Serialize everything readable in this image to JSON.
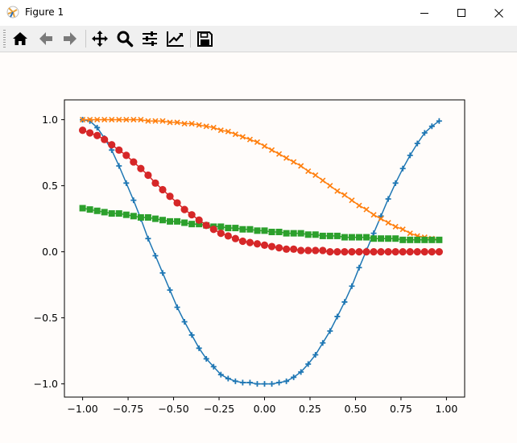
{
  "window": {
    "title": "Figure 1",
    "controls": [
      "minimize",
      "maximize",
      "close"
    ]
  },
  "toolbar": {
    "buttons": [
      {
        "name": "home-icon",
        "tooltip": "Reset original view"
      },
      {
        "name": "back-arrow-icon",
        "tooltip": "Back to previous view"
      },
      {
        "name": "forward-arrow-icon",
        "tooltip": "Forward to next view"
      },
      {
        "name": "pan-move-icon",
        "tooltip": "Pan axes"
      },
      {
        "name": "zoom-magnifier-icon",
        "tooltip": "Zoom to rectangle"
      },
      {
        "name": "configure-subplots-icon",
        "tooltip": "Configure subplots"
      },
      {
        "name": "edit-axis-icon",
        "tooltip": "Edit axis, curve and image parameters"
      },
      {
        "name": "save-floppy-icon",
        "tooltip": "Save the figure"
      }
    ]
  },
  "chart_data": {
    "type": "line",
    "title": "",
    "xlabel": "",
    "ylabel": "",
    "xlim": [
      -1.1,
      1.1
    ],
    "ylim": [
      -1.1,
      1.15
    ],
    "xticks": [
      -1.0,
      -0.75,
      -0.5,
      -0.25,
      0.0,
      0.25,
      0.5,
      0.75,
      1.0
    ],
    "xtick_labels": [
      "−1.00",
      "−0.75",
      "−0.50",
      "−0.25",
      "0.00",
      "0.25",
      "0.50",
      "0.75",
      "1.00"
    ],
    "yticks": [
      -1.0,
      -0.5,
      0.0,
      0.5,
      1.0
    ],
    "ytick_labels": [
      "−1.0",
      "−0.5",
      "0.0",
      "0.5",
      "1.0"
    ],
    "grid": false,
    "x": [
      -1.0,
      -0.96,
      -0.92,
      -0.88,
      -0.84,
      -0.8,
      -0.76,
      -0.72,
      -0.68,
      -0.64,
      -0.6,
      -0.56,
      -0.52,
      -0.48,
      -0.44,
      -0.4,
      -0.36,
      -0.32,
      -0.28,
      -0.24,
      -0.2,
      -0.16,
      -0.12,
      -0.08,
      -0.04,
      0.0,
      0.04,
      0.08,
      0.12,
      0.16,
      0.2,
      0.24,
      0.28,
      0.32,
      0.36,
      0.4,
      0.44,
      0.48,
      0.52,
      0.56,
      0.6,
      0.64,
      0.68,
      0.72,
      0.76,
      0.8,
      0.84,
      0.88,
      0.92,
      0.96
    ],
    "series": [
      {
        "color": "#1f77b4",
        "marker": "plus",
        "line": "solid",
        "values": [
          1.0,
          0.99,
          0.94,
          0.86,
          0.77,
          0.65,
          0.52,
          0.39,
          0.25,
          0.1,
          -0.03,
          -0.16,
          -0.29,
          -0.42,
          -0.53,
          -0.63,
          -0.73,
          -0.81,
          -0.87,
          -0.93,
          -0.96,
          -0.98,
          -0.99,
          -0.99,
          -1.0,
          -1.0,
          -1.0,
          -0.99,
          -0.98,
          -0.95,
          -0.91,
          -0.85,
          -0.78,
          -0.69,
          -0.6,
          -0.49,
          -0.38,
          -0.26,
          -0.12,
          0.01,
          0.14,
          0.27,
          0.4,
          0.52,
          0.63,
          0.73,
          0.82,
          0.9,
          0.95,
          0.99
        ]
      },
      {
        "color": "#ff7f0e",
        "marker": "x",
        "line": "solid",
        "values": [
          1.0,
          1.0,
          1.0,
          1.0,
          1.0,
          1.0,
          1.0,
          1.0,
          1.0,
          0.99,
          0.99,
          0.99,
          0.98,
          0.98,
          0.97,
          0.97,
          0.96,
          0.95,
          0.94,
          0.92,
          0.91,
          0.89,
          0.87,
          0.85,
          0.83,
          0.8,
          0.77,
          0.74,
          0.71,
          0.68,
          0.65,
          0.61,
          0.58,
          0.54,
          0.5,
          0.46,
          0.43,
          0.39,
          0.35,
          0.32,
          0.28,
          0.25,
          0.22,
          0.19,
          0.17,
          0.14,
          0.12,
          0.11,
          0.1,
          0.09
        ]
      },
      {
        "color": "#2ca02c",
        "marker": "square",
        "line": "solid",
        "values": [
          0.33,
          0.32,
          0.31,
          0.3,
          0.29,
          0.29,
          0.28,
          0.27,
          0.26,
          0.26,
          0.25,
          0.24,
          0.23,
          0.23,
          0.22,
          0.21,
          0.21,
          0.2,
          0.19,
          0.19,
          0.18,
          0.18,
          0.17,
          0.17,
          0.16,
          0.16,
          0.15,
          0.15,
          0.14,
          0.14,
          0.14,
          0.13,
          0.13,
          0.12,
          0.12,
          0.12,
          0.11,
          0.11,
          0.11,
          0.11,
          0.1,
          0.1,
          0.1,
          0.1,
          0.09,
          0.09,
          0.09,
          0.09,
          0.09,
          0.09
        ]
      },
      {
        "color": "#d62728",
        "marker": "circle",
        "line": "solid",
        "values": [
          0.92,
          0.9,
          0.88,
          0.85,
          0.81,
          0.77,
          0.73,
          0.68,
          0.63,
          0.58,
          0.52,
          0.47,
          0.42,
          0.37,
          0.32,
          0.28,
          0.24,
          0.2,
          0.17,
          0.14,
          0.12,
          0.1,
          0.08,
          0.07,
          0.06,
          0.05,
          0.04,
          0.03,
          0.02,
          0.02,
          0.01,
          0.01,
          0.01,
          0.01,
          0.0,
          0.0,
          0.0,
          0.0,
          0.0,
          0.0,
          0.0,
          0.0,
          0.0,
          0.0,
          0.0,
          0.0,
          0.0,
          0.0,
          0.0,
          0.0
        ]
      }
    ]
  }
}
